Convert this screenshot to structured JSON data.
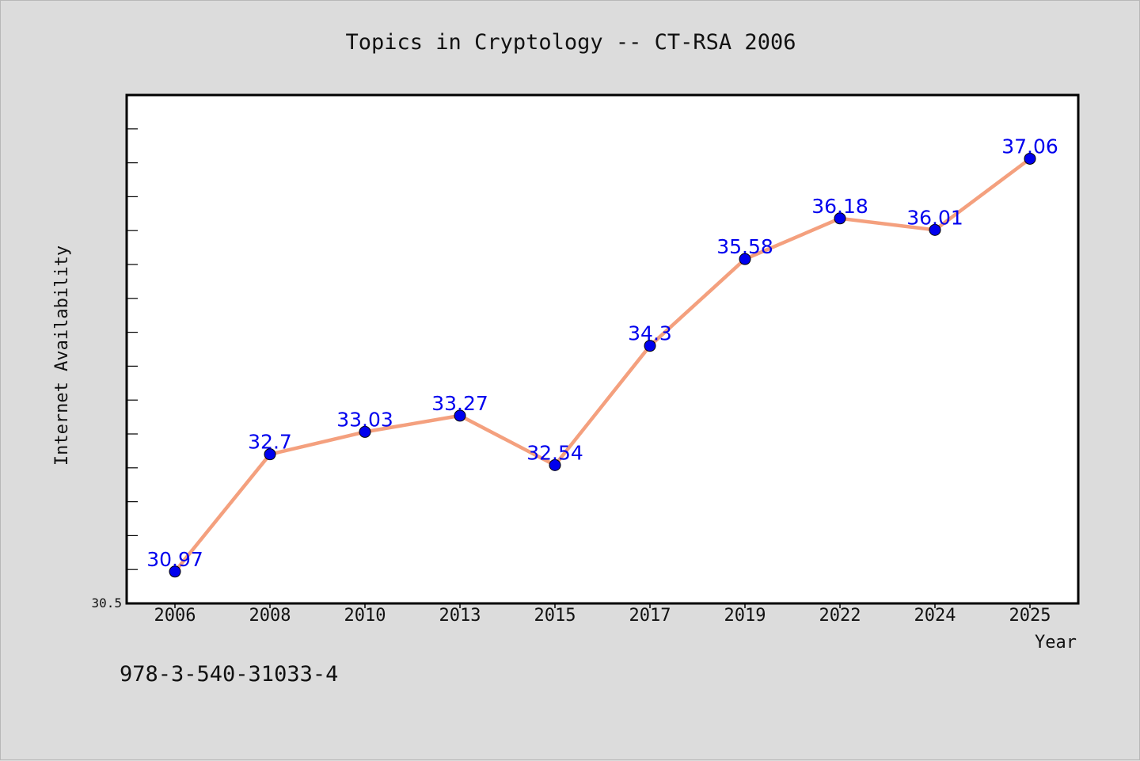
{
  "chart_data": {
    "type": "line",
    "title": "Topics in Cryptology -- CT-RSA 2006",
    "xlabel": "Year",
    "ylabel": "Internet Availability",
    "categories": [
      "2006",
      "2008",
      "2010",
      "2013",
      "2015",
      "2017",
      "2019",
      "2022",
      "2024",
      "2025"
    ],
    "series": [
      {
        "values": [
          30.97,
          32.7,
          33.03,
          33.27,
          32.54,
          34.3,
          35.58,
          36.18,
          36.01,
          37.06
        ],
        "labels": [
          "30.97",
          "32.7",
          "33.03",
          "33.27",
          "32.54",
          "34.3",
          "35.58",
          "36.18",
          "36.01",
          "37.06"
        ]
      }
    ],
    "ylim": [
      30.5,
      38.0
    ],
    "ytick_labels": [
      "30.5"
    ],
    "grid": false,
    "line_color": "#f4a07e",
    "marker_color": "#0000ee",
    "label_color": "#0000ee"
  },
  "footer": {
    "isbn": "978-3-540-31033-4"
  }
}
